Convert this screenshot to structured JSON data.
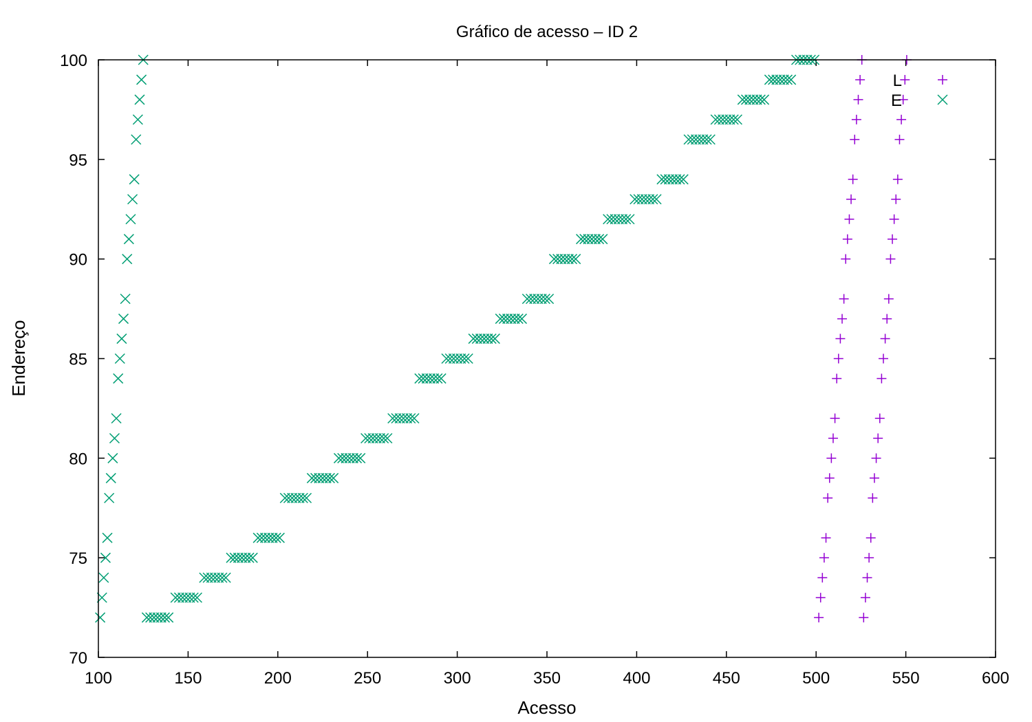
{
  "chart_data": {
    "type": "scatter",
    "title": "Gráfico de acesso – ID 2",
    "xlabel": "Acesso",
    "ylabel": "Endereço",
    "xlim": [
      100,
      600
    ],
    "ylim": [
      70,
      100
    ],
    "xticks": [
      100,
      150,
      200,
      250,
      300,
      350,
      400,
      450,
      500,
      550,
      600
    ],
    "yticks": [
      70,
      75,
      80,
      85,
      90,
      95,
      100
    ],
    "grid": false,
    "legend_position": "top-right",
    "series": [
      {
        "name": "L",
        "marker": "plus",
        "color": "#9400d3",
        "points": [
          [
            501.5,
            72
          ],
          [
            502.5,
            73
          ],
          [
            503.5,
            74
          ],
          [
            504.5,
            75
          ],
          [
            505.5,
            76
          ],
          [
            506.5,
            78
          ],
          [
            507.5,
            79
          ],
          [
            508.5,
            80
          ],
          [
            509.5,
            81
          ],
          [
            510.5,
            82
          ],
          [
            511.5,
            84
          ],
          [
            512.5,
            85
          ],
          [
            513.5,
            86
          ],
          [
            514.5,
            87
          ],
          [
            515.5,
            88
          ],
          [
            516.5,
            90
          ],
          [
            517.5,
            91
          ],
          [
            518.5,
            92
          ],
          [
            519.5,
            93
          ],
          [
            520.5,
            94
          ],
          [
            521.5,
            96
          ],
          [
            522.5,
            97
          ],
          [
            523.5,
            98
          ],
          [
            524.5,
            99
          ],
          [
            525.5,
            100
          ],
          [
            526.5,
            72
          ],
          [
            527.5,
            73
          ],
          [
            528.5,
            74
          ],
          [
            529.5,
            75
          ],
          [
            530.5,
            76
          ],
          [
            531.5,
            78
          ],
          [
            532.5,
            79
          ],
          [
            533.5,
            80
          ],
          [
            534.5,
            81
          ],
          [
            535.5,
            82
          ],
          [
            536.5,
            84
          ],
          [
            537.5,
            85
          ],
          [
            538.5,
            86
          ],
          [
            539.5,
            87
          ],
          [
            540.5,
            88
          ],
          [
            541.5,
            90
          ],
          [
            542.5,
            91
          ],
          [
            543.5,
            92
          ],
          [
            544.5,
            93
          ],
          [
            545.5,
            94
          ],
          [
            546.5,
            96
          ],
          [
            547.5,
            97
          ],
          [
            548.5,
            98
          ],
          [
            549.5,
            99
          ],
          [
            550.5,
            100
          ]
        ]
      },
      {
        "name": "E",
        "marker": "cross",
        "color": "#009e73",
        "points": [
          [
            101,
            72
          ],
          [
            102,
            73
          ],
          [
            103,
            74
          ],
          [
            104,
            75
          ],
          [
            105,
            76
          ],
          [
            106,
            78
          ],
          [
            107,
            79
          ],
          [
            108,
            80
          ],
          [
            109,
            81
          ],
          [
            110,
            82
          ],
          [
            111,
            84
          ],
          [
            112,
            85
          ],
          [
            113,
            86
          ],
          [
            114,
            87
          ],
          [
            115,
            88
          ],
          [
            116,
            90
          ],
          [
            117,
            91
          ],
          [
            118,
            92
          ],
          [
            119,
            93
          ],
          [
            120,
            94
          ],
          [
            121,
            96
          ],
          [
            122,
            97
          ],
          [
            123,
            98
          ],
          [
            124,
            99
          ],
          [
            125,
            100
          ],
          [
            127,
            72
          ],
          [
            129,
            72
          ],
          [
            131,
            72
          ],
          [
            133,
            72
          ],
          [
            135,
            72
          ],
          [
            137,
            72
          ],
          [
            139,
            72
          ],
          [
            143,
            73
          ],
          [
            145,
            73
          ],
          [
            147,
            73
          ],
          [
            149,
            73
          ],
          [
            151,
            73
          ],
          [
            153,
            73
          ],
          [
            155,
            73
          ],
          [
            159,
            74
          ],
          [
            161,
            74
          ],
          [
            163,
            74
          ],
          [
            165,
            74
          ],
          [
            167,
            74
          ],
          [
            169,
            74
          ],
          [
            171,
            74
          ],
          [
            174,
            75
          ],
          [
            176,
            75
          ],
          [
            178,
            75
          ],
          [
            180,
            75
          ],
          [
            182,
            75
          ],
          [
            184,
            75
          ],
          [
            186,
            75
          ],
          [
            189,
            76
          ],
          [
            191,
            76
          ],
          [
            193,
            76
          ],
          [
            195,
            76
          ],
          [
            197,
            76
          ],
          [
            199,
            76
          ],
          [
            201,
            76
          ],
          [
            204,
            78
          ],
          [
            206,
            78
          ],
          [
            208,
            78
          ],
          [
            210,
            78
          ],
          [
            212,
            78
          ],
          [
            214,
            78
          ],
          [
            216,
            78
          ],
          [
            219,
            79
          ],
          [
            221,
            79
          ],
          [
            223,
            79
          ],
          [
            225,
            79
          ],
          [
            227,
            79
          ],
          [
            229,
            79
          ],
          [
            231,
            79
          ],
          [
            234,
            80
          ],
          [
            236,
            80
          ],
          [
            238,
            80
          ],
          [
            240,
            80
          ],
          [
            242,
            80
          ],
          [
            244,
            80
          ],
          [
            246,
            80
          ],
          [
            249,
            81
          ],
          [
            251,
            81
          ],
          [
            253,
            81
          ],
          [
            255,
            81
          ],
          [
            257,
            81
          ],
          [
            259,
            81
          ],
          [
            261,
            81
          ],
          [
            264,
            82
          ],
          [
            266,
            82
          ],
          [
            268,
            82
          ],
          [
            270,
            82
          ],
          [
            272,
            82
          ],
          [
            274,
            82
          ],
          [
            276,
            82
          ],
          [
            279,
            84
          ],
          [
            281,
            84
          ],
          [
            283,
            84
          ],
          [
            285,
            84
          ],
          [
            287,
            84
          ],
          [
            289,
            84
          ],
          [
            291,
            84
          ],
          [
            294,
            85
          ],
          [
            296,
            85
          ],
          [
            298,
            85
          ],
          [
            300,
            85
          ],
          [
            302,
            85
          ],
          [
            304,
            85
          ],
          [
            306,
            85
          ],
          [
            309,
            86
          ],
          [
            311,
            86
          ],
          [
            313,
            86
          ],
          [
            315,
            86
          ],
          [
            317,
            86
          ],
          [
            319,
            86
          ],
          [
            321,
            86
          ],
          [
            324,
            87
          ],
          [
            326,
            87
          ],
          [
            328,
            87
          ],
          [
            330,
            87
          ],
          [
            332,
            87
          ],
          [
            334,
            87
          ],
          [
            336,
            87
          ],
          [
            339,
            88
          ],
          [
            341,
            88
          ],
          [
            343,
            88
          ],
          [
            345,
            88
          ],
          [
            347,
            88
          ],
          [
            349,
            88
          ],
          [
            351,
            88
          ],
          [
            354,
            90
          ],
          [
            356,
            90
          ],
          [
            358,
            90
          ],
          [
            360,
            90
          ],
          [
            362,
            90
          ],
          [
            364,
            90
          ],
          [
            366,
            90
          ],
          [
            369,
            91
          ],
          [
            371,
            91
          ],
          [
            373,
            91
          ],
          [
            375,
            91
          ],
          [
            377,
            91
          ],
          [
            379,
            91
          ],
          [
            381,
            91
          ],
          [
            384,
            92
          ],
          [
            386,
            92
          ],
          [
            388,
            92
          ],
          [
            390,
            92
          ],
          [
            392,
            92
          ],
          [
            394,
            92
          ],
          [
            396,
            92
          ],
          [
            399,
            93
          ],
          [
            401,
            93
          ],
          [
            403,
            93
          ],
          [
            405,
            93
          ],
          [
            407,
            93
          ],
          [
            409,
            93
          ],
          [
            411,
            93
          ],
          [
            414,
            94
          ],
          [
            416,
            94
          ],
          [
            418,
            94
          ],
          [
            420,
            94
          ],
          [
            422,
            94
          ],
          [
            424,
            94
          ],
          [
            426,
            94
          ],
          [
            429,
            96
          ],
          [
            431,
            96
          ],
          [
            433,
            96
          ],
          [
            435,
            96
          ],
          [
            437,
            96
          ],
          [
            439,
            96
          ],
          [
            441,
            96
          ],
          [
            444,
            97
          ],
          [
            446,
            97
          ],
          [
            448,
            97
          ],
          [
            450,
            97
          ],
          [
            452,
            97
          ],
          [
            454,
            97
          ],
          [
            456,
            97
          ],
          [
            459,
            98
          ],
          [
            461,
            98
          ],
          [
            463,
            98
          ],
          [
            465,
            98
          ],
          [
            467,
            98
          ],
          [
            469,
            98
          ],
          [
            471,
            98
          ],
          [
            474,
            99
          ],
          [
            476,
            99
          ],
          [
            478,
            99
          ],
          [
            480,
            99
          ],
          [
            482,
            99
          ],
          [
            484,
            99
          ],
          [
            486,
            99
          ],
          [
            489,
            100
          ],
          [
            491,
            100
          ],
          [
            493,
            100
          ],
          [
            495,
            100
          ],
          [
            497,
            100
          ],
          [
            499,
            100
          ]
        ]
      }
    ]
  }
}
